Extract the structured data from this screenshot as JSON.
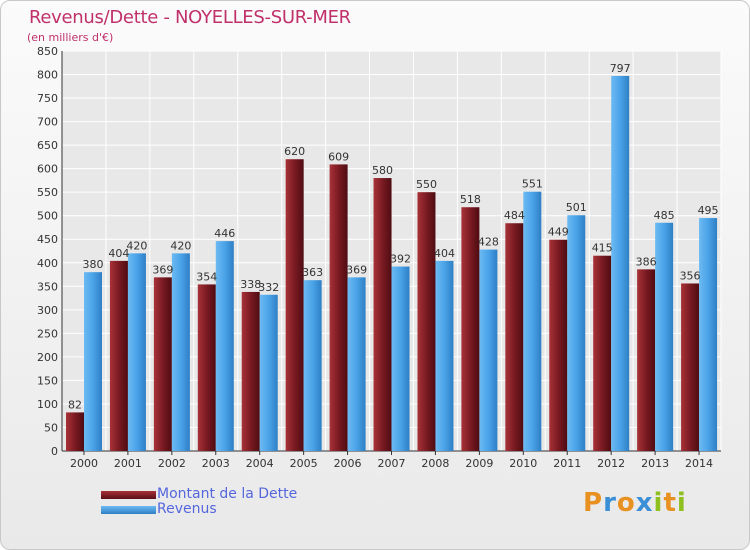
{
  "title": "Revenus/Dette - NOYELLES-SUR-MER",
  "subtitle": "(en milliers d'€)",
  "logo": {
    "letters": [
      "P",
      "r",
      "o",
      "x",
      "i",
      "t",
      "i"
    ],
    "colors": [
      "#e89020",
      "#3a8fd6",
      "#e89020",
      "#3a8fd6",
      "#90c020",
      "#e89020",
      "#90c020"
    ]
  },
  "chart_data": {
    "type": "bar",
    "categories": [
      "2000",
      "2001",
      "2002",
      "2003",
      "2004",
      "2005",
      "2006",
      "2007",
      "2008",
      "2009",
      "2010",
      "2011",
      "2012",
      "2013",
      "2014"
    ],
    "series": [
      {
        "name": "Montant de la Dette",
        "color": "#7a1a22",
        "values": [
          82,
          404,
          369,
          354,
          338,
          620,
          609,
          580,
          550,
          518,
          484,
          449,
          415,
          386,
          356
        ]
      },
      {
        "name": "Revenus",
        "color": "#4aa3e8",
        "values": [
          380,
          420,
          420,
          446,
          332,
          363,
          369,
          392,
          404,
          428,
          551,
          501,
          797,
          485,
          495
        ]
      }
    ],
    "ylim": [
      0,
      850
    ],
    "ytick_step": 50,
    "grid": true,
    "legend_position": "bottom-left"
  }
}
